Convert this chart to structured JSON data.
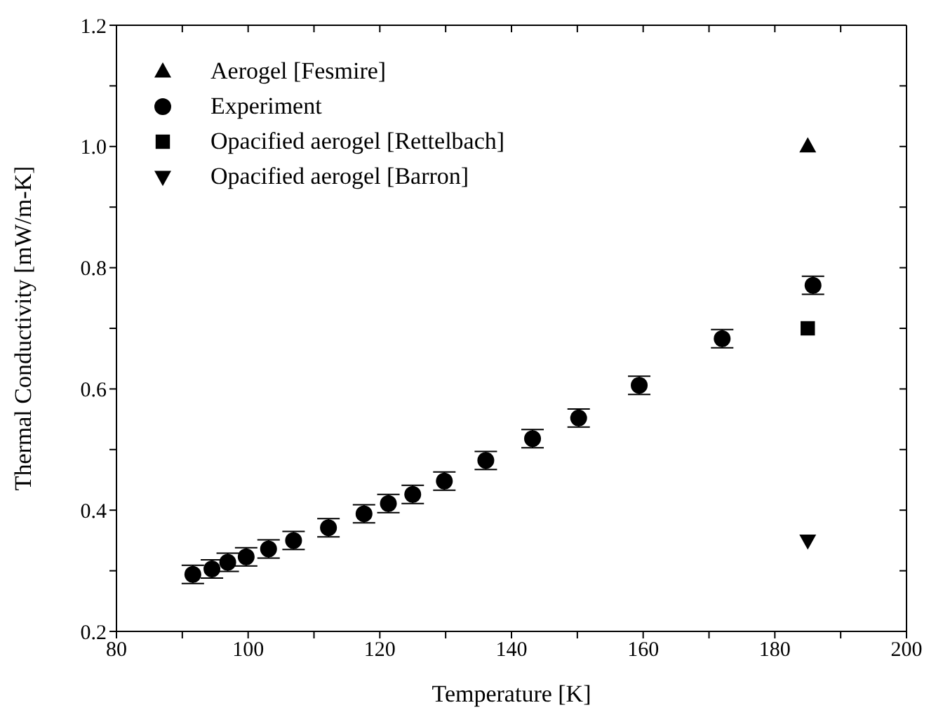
{
  "chart_data": {
    "type": "scatter",
    "xlabel": "Temperature [K]",
    "ylabel": "Thermal Conductivity [mW/m-K]",
    "xlim": [
      80,
      200
    ],
    "ylim": [
      0.2,
      1.2
    ],
    "xticks": [
      80,
      {
        "value": 90,
        "label": null
      },
      100,
      {
        "value": 110,
        "label": null
      },
      120,
      {
        "value": 130,
        "label": null
      },
      140,
      {
        "value": 150,
        "label": null
      },
      160,
      {
        "value": 170,
        "label": null
      },
      180,
      {
        "value": 190,
        "label": null
      },
      200
    ],
    "yticks": [
      0.2,
      {
        "value": 0.3,
        "label": null
      },
      0.4,
      {
        "value": 0.5,
        "label": null
      },
      0.6,
      {
        "value": 0.7,
        "label": null
      },
      0.8,
      {
        "value": 0.9,
        "label": null
      },
      {
        "value": 1,
        "label": "1.0"
      },
      {
        "value": 1.1,
        "label": null
      },
      1.2
    ],
    "legend": "top left",
    "series": [
      {
        "name": "Aerogel [Fesmire]",
        "color": "#000000",
        "marker": "triangle",
        "x": [
          185
        ],
        "values": [
          1.0
        ]
      },
      {
        "name": "Experiment",
        "color": "#000000",
        "marker": "circle",
        "x": [
          91.6,
          94.5,
          96.9,
          99.7,
          103.1,
          106.9,
          112.2,
          117.6,
          121.3,
          125.0,
          129.8,
          136.1,
          143.2,
          150.2,
          159.4,
          172.0,
          185.8
        ],
        "values": [
          0.294,
          0.303,
          0.314,
          0.323,
          0.336,
          0.35,
          0.371,
          0.394,
          0.411,
          0.426,
          0.448,
          0.482,
          0.518,
          0.552,
          0.606,
          0.683,
          0.771
        ],
        "errors": [
          0.015,
          0.015,
          0.015,
          0.015,
          0.015,
          0.015,
          0.015,
          0.015,
          0.015,
          0.015,
          0.015,
          0.015,
          0.015,
          0.015,
          0.015,
          0.015,
          0.015
        ]
      },
      {
        "name": "Opacified aerogel [Rettelbach]",
        "color": "#000000",
        "marker": "square",
        "x": [
          185
        ],
        "values": [
          0.7
        ]
      },
      {
        "name": "Opacified aerogel [Barron]",
        "color": "#000000",
        "marker": "triangle-down",
        "x": [
          185
        ],
        "values": [
          0.35
        ]
      }
    ]
  }
}
